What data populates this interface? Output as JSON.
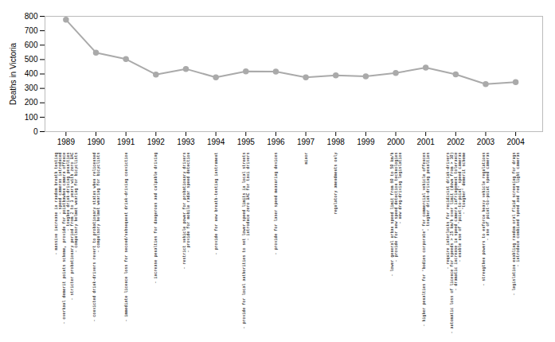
{
  "chart_data": {
    "type": "line",
    "x": [
      1989,
      1990,
      1991,
      1992,
      1993,
      1994,
      1995,
      1996,
      1997,
      1998,
      1999,
      2000,
      2001,
      2002,
      2003,
      2004
    ],
    "values": [
      776,
      548,
      503,
      396,
      435,
      377,
      418,
      417,
      377,
      390,
      384,
      407,
      444,
      397,
      330,
      343
    ],
    "color": "#aaaaaa",
    "marker": "circle",
    "ylabel": "Deaths in Victoria",
    "xlim": [
      1988.3,
      2004.9
    ],
    "xticks": [
      1989,
      1990,
      1991,
      1992,
      1993,
      1994,
      1995,
      1996,
      1997,
      1998,
      1999,
      2000,
      2001,
      2002,
      2003,
      2004
    ],
    "ylim": [
      0,
      800
    ],
    "yticks": [
      0,
      100,
      200,
      300,
      400,
      500,
      600,
      700,
      800
    ],
    "grid": false,
    "annotations": [
      {
        "x": 1989,
        "text": [
          "- massive increase in random breath testing",
          "- speed cameras introduced",
          "- overhaul demerit points scheme, provide for pointbawhen camera offence",
          "- toughen drink-driving penalties",
          "- stricter probationary period from 2 to 3 years with zero BAC",
          "- compulsory helmet wearing for bicyclists"
        ]
      },
      {
        "x": 1990,
        "text": [
          "- convicted drink-drivers revert to probationary status when relicensed",
          "- compulsory helmet wearing for bicyclists"
        ]
      },
      {
        "x": 1991,
        "text": [
          "- immediate licence loss for second/subsequent drink-driving conviction"
        ]
      },
      {
        "x": 1992,
        "text": [
          "- increase penalties for dangerous and culpable driving"
        ]
      },
      {
        "x": 1993,
        "text": [
          "- restrict vehicle power for probationary drivers",
          "- provide for mobile radar speed detection"
        ]
      },
      {
        "x": 1994,
        "text": [
          "- provide for new breath-testing instrument"
        ]
      },
      {
        "x": 1995,
        "text": [
          "- provide for local authorities to set lower speed limits in local streets",
          "- introduce zero BAC for taxi drivers"
        ]
      },
      {
        "x": 1996,
        "text": [
          "- provide for laser speed measuring devices"
        ]
      },
      {
        "x": 1997,
        "text": [
          "minor"
        ]
      },
      {
        "x": 1998,
        "text": [
          "regulatory amendments only"
        ]
      },
      {
        "x": 2000,
        "text": [
          "- lower general urban speed limit from 60 to 50 km/h",
          "- provide for new speed detection technologies",
          "- new drug-driving legislation"
        ]
      },
      {
        "x": 2001,
        "text": [
          "- higher penalties for 'bodies corporate' for commercial vehicle offences",
          "- tougher drink-driving penalties"
        ]
      },
      {
        "x": 2002,
        "text": [
          "- require interlocks for recidivist drink-drivers",
          "- automatic loss of licence for speeds > 25 km/h over limit (down from > 30)",
          "- dramatic increase in speed camera infringement tolerance",
          "- enable use of 'point-to-point' speed cameras",
          "- 'tougher' demerit scheme"
        ]
      },
      {
        "x": 2003,
        "text": [
          "- strengthen powers to enforce heavy vehicle regulations",
          "- use of point-to-point speed cameras"
        ]
      },
      {
        "x": 2004,
        "text": [
          "- legislation enabling random oral fluid screening for drugs",
          "- introduce combined speed and red light cameras"
        ]
      }
    ]
  }
}
